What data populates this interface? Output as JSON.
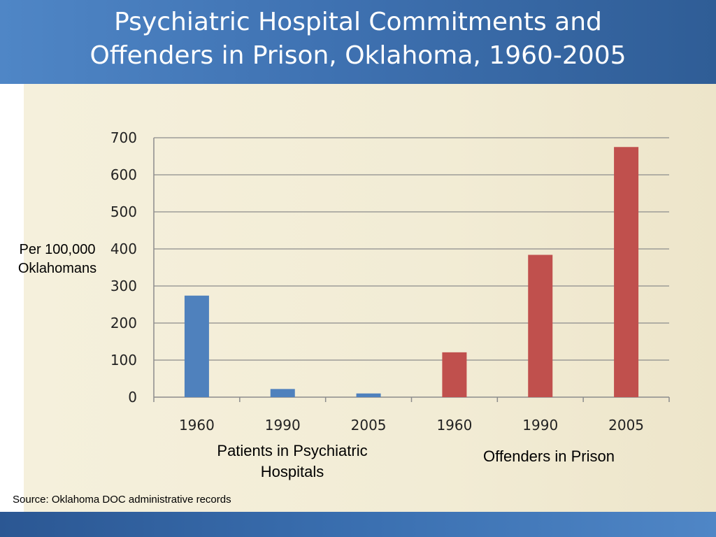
{
  "slide": {
    "title_line1": "Psychiatric Hospital Commitments and",
    "title_line2": "Offenders in Prison, Oklahoma, 1960-2005",
    "source": "Source: Oklahoma DOC administrative records"
  },
  "chart_data": {
    "type": "bar",
    "title": "",
    "ylabel": "Per 100,000 Oklahomans",
    "ylim": [
      0,
      700
    ],
    "yticks": [
      0,
      100,
      200,
      300,
      400,
      500,
      600,
      700
    ],
    "grid": true,
    "categories": [
      "1960",
      "1990",
      "2005",
      "1960",
      "1990",
      "2005"
    ],
    "values": [
      274,
      22,
      10,
      121,
      384,
      675
    ],
    "colors": [
      "#4f81bd",
      "#4f81bd",
      "#4f81bd",
      "#c0504d",
      "#c0504d",
      "#c0504d"
    ],
    "groups": [
      {
        "label": "Patients in Psychiatric Hospitals",
        "color": "#4f81bd",
        "categories": [
          "1960",
          "1990",
          "2005"
        ]
      },
      {
        "label": "Offenders in Prison",
        "color": "#c0504d",
        "categories": [
          "1960",
          "1990",
          "2005"
        ]
      }
    ]
  }
}
